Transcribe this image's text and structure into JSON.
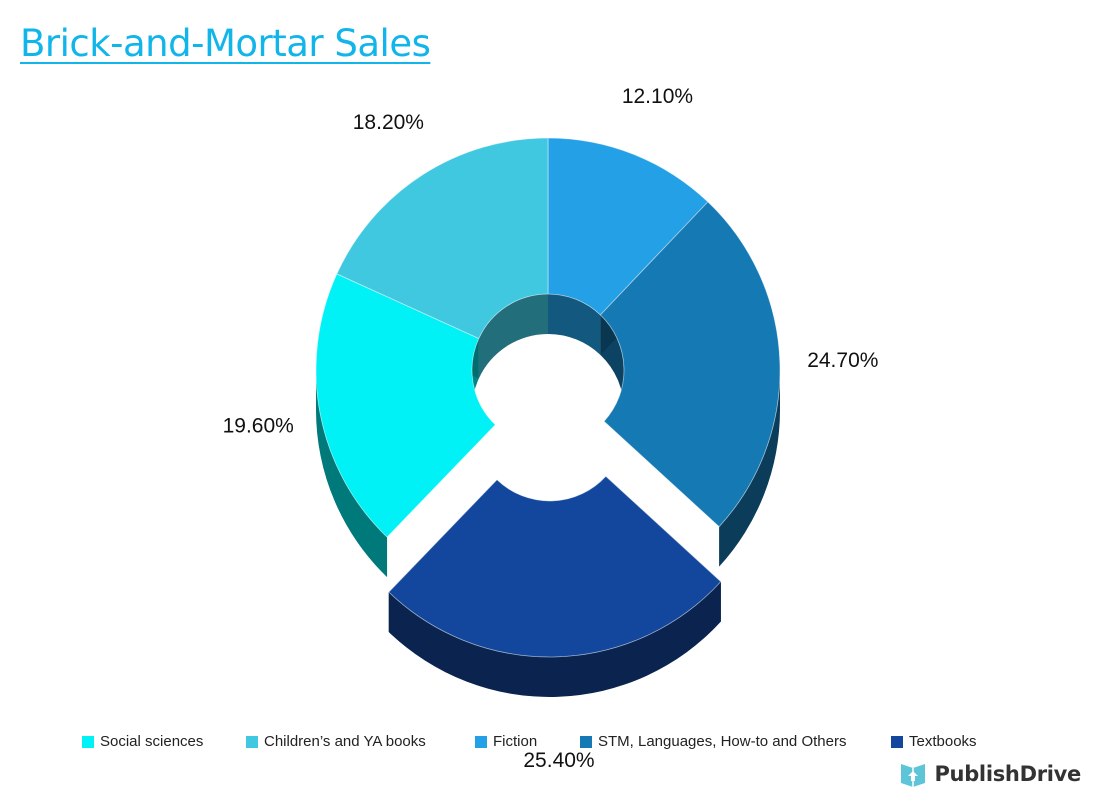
{
  "chart_data": {
    "type": "pie",
    "variant": "3d-donut",
    "title": "Brick-and-Mortar Sales",
    "slices": [
      {
        "name": "Fiction",
        "value": 12.1,
        "label": "12.10%",
        "color": "#23a0e6",
        "exploded": false
      },
      {
        "name": "STM, Languages, How-to and Others",
        "value": 24.7,
        "label": "24.70%",
        "color": "#1579b4",
        "exploded": false
      },
      {
        "name": "Textbooks",
        "value": 25.4,
        "label": "25.40%",
        "color": "#13479d",
        "exploded": true
      },
      {
        "name": "Social sciences",
        "value": 19.6,
        "label": "19.60%",
        "color": "#00f2f6",
        "exploded": false
      },
      {
        "name": "Children’s and YA books",
        "value": 18.2,
        "label": "18.20%",
        "color": "#40c8e0",
        "exploded": false
      }
    ],
    "legend": {
      "placement": "bottom",
      "order": [
        "Social sciences",
        "Children’s and YA books",
        "Fiction",
        "STM, Languages, How-to and Others",
        "Textbooks"
      ]
    }
  },
  "brand": {
    "name": "PublishDrive",
    "icon": "book-upload-icon",
    "color": "#5ec4d8"
  }
}
